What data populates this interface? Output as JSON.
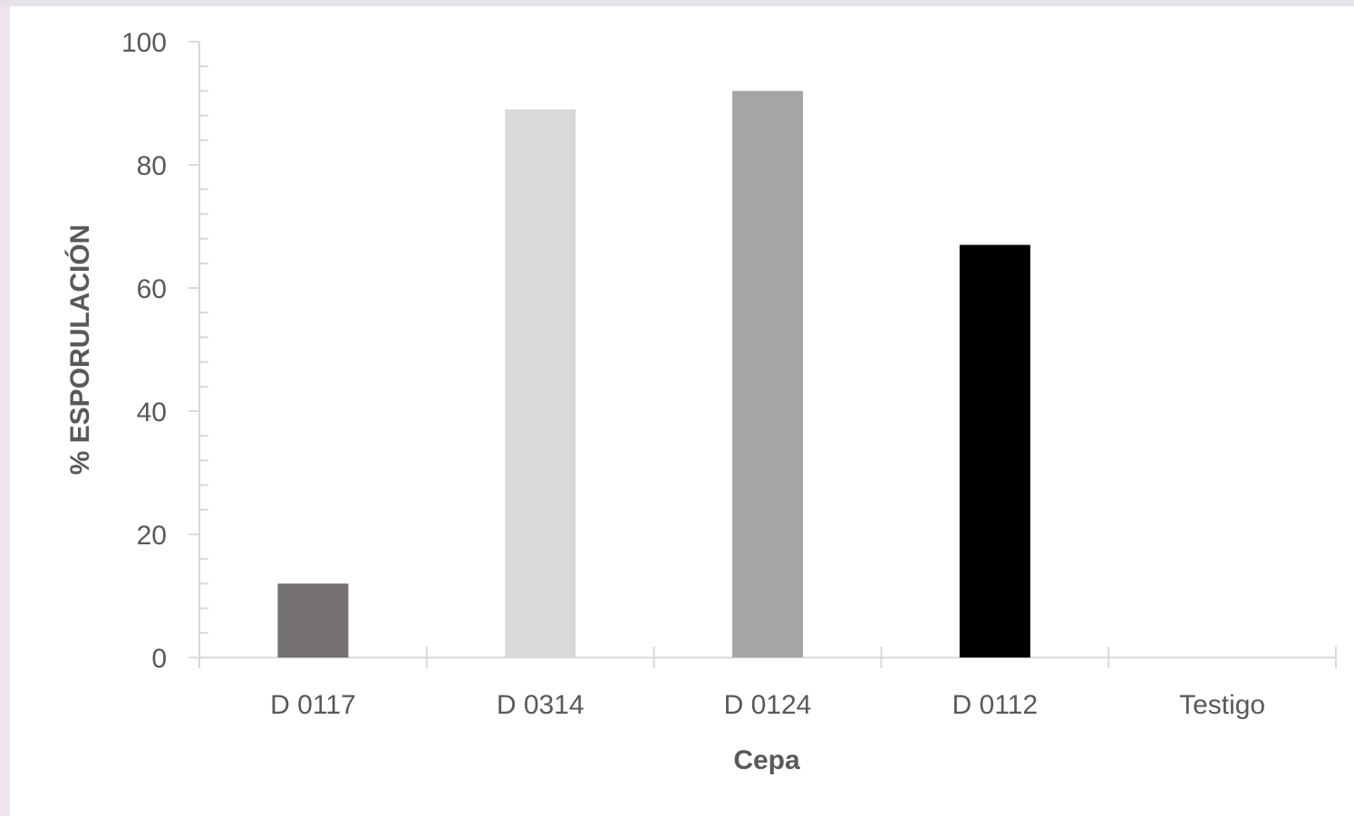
{
  "chart_data": {
    "type": "bar",
    "title": "",
    "xlabel": "Cepa",
    "ylabel": "% ESPORULACIÓN",
    "categories": [
      "D 0117",
      "D 0314",
      "D 0124",
      "D 0112",
      "Testigo"
    ],
    "values": [
      12,
      89,
      92,
      67,
      0
    ],
    "colors": [
      "#767171",
      "#d9d9d9",
      "#a5a5a5",
      "#000000",
      "#ffffff"
    ],
    "ylim": [
      0,
      100
    ],
    "yticks": [
      0,
      20,
      40,
      60,
      80,
      100
    ],
    "grid": false,
    "legend": "none"
  }
}
